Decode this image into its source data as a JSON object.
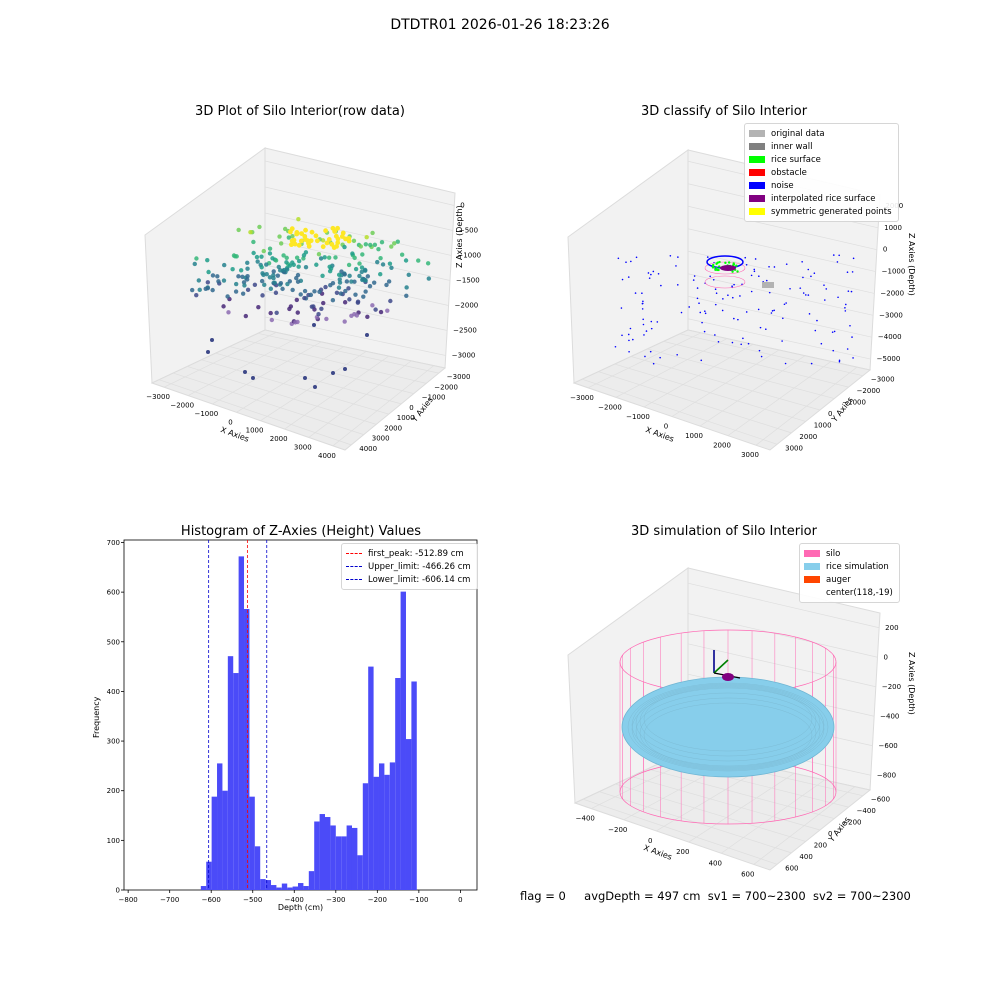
{
  "suptitle": "DTDTR01 2026-01-26 18:23:26",
  "panels": {
    "raw": {
      "title": "3D Plot of Silo Interior(row data)",
      "xlabel": "X Axies",
      "ylabel": "Y Axies",
      "zlabel": "Z Axies (Depth)",
      "xticks": [
        "−3000",
        "−2000",
        "−1000",
        "0",
        "1000",
        "2000",
        "3000",
        "4000"
      ],
      "yticks": [
        "4000",
        "3000",
        "2000",
        "1000",
        "0",
        "−1000",
        "−2000",
        "−3000"
      ],
      "zticks": [
        "0",
        "−500",
        "−1000",
        "−1500",
        "−2000",
        "−2500",
        "−3000"
      ]
    },
    "classify": {
      "title": "3D classify of Silo Interior",
      "xlabel": "X Axies",
      "ylabel": "Y Axies",
      "zlabel": "Z Axies (Depth)",
      "xticks": [
        "−3000",
        "−2000",
        "−1000",
        "0",
        "1000",
        "2000",
        "3000"
      ],
      "yticks": [
        "3000",
        "2000",
        "1000",
        "0",
        "−1000",
        "−2000",
        "−3000"
      ],
      "zticks": [
        "2000",
        "1000",
        "0",
        "−1000",
        "−2000",
        "−3000",
        "−4000",
        "−5000"
      ],
      "legend": [
        {
          "label": "original data",
          "color": "#b3b3b3"
        },
        {
          "label": "inner wall",
          "color": "#808080"
        },
        {
          "label": "rice surface",
          "color": "#00ff00"
        },
        {
          "label": "obstacle",
          "color": "#ff0000"
        },
        {
          "label": "noise",
          "color": "#0000ff"
        },
        {
          "label": "interpolated rice surface",
          "color": "#800080"
        },
        {
          "label": "symmetric generated points",
          "color": "#ffff00"
        }
      ]
    },
    "simulation": {
      "title": "3D simulation of Silo Interior",
      "xlabel": "X Axies",
      "ylabel": "Y Axies",
      "zlabel": "Z Axies (Depth)",
      "xticks": [
        "−400",
        "−200",
        "0",
        "200",
        "400",
        "600"
      ],
      "yticks": [
        "600",
        "400",
        "200",
        "0",
        "−200",
        "−400",
        "−600"
      ],
      "zticks": [
        "200",
        "0",
        "−200",
        "−400",
        "−600",
        "−800"
      ],
      "legend": [
        {
          "label": "silo",
          "color": "#ff69b4"
        },
        {
          "label": "rice simulation",
          "color": "#87ceeb"
        },
        {
          "label": "auger",
          "color": "#ff4500"
        },
        {
          "label": "center(118,-19)",
          "color": ""
        }
      ]
    }
  },
  "chart_data": {
    "type": "bar",
    "title": "Histogram of Z-Axies (Height) Values",
    "xlabel": "Depth (cm)",
    "ylabel": "Frequency",
    "xlim": [
      -810,
      40
    ],
    "ylim": [
      0,
      705
    ],
    "xticks": [
      -800,
      -700,
      -600,
      -500,
      -400,
      -300,
      -200,
      -100,
      0
    ],
    "yticks": [
      0,
      100,
      200,
      300,
      400,
      500,
      600,
      700
    ],
    "bin_width": 13,
    "bins": [
      {
        "start": -625,
        "count": 8
      },
      {
        "start": -612,
        "count": 57
      },
      {
        "start": -599,
        "count": 188
      },
      {
        "start": -586,
        "count": 255
      },
      {
        "start": -573,
        "count": 200
      },
      {
        "start": -560,
        "count": 471
      },
      {
        "start": -547,
        "count": 437
      },
      {
        "start": -534,
        "count": 672
      },
      {
        "start": -521,
        "count": 566
      },
      {
        "start": -508,
        "count": 188
      },
      {
        "start": -495,
        "count": 88
      },
      {
        "start": -482,
        "count": 22
      },
      {
        "start": -469,
        "count": 20
      },
      {
        "start": -456,
        "count": 10
      },
      {
        "start": -443,
        "count": 5
      },
      {
        "start": -430,
        "count": 13
      },
      {
        "start": -417,
        "count": 5
      },
      {
        "start": -404,
        "count": 7
      },
      {
        "start": -391,
        "count": 14
      },
      {
        "start": -378,
        "count": 8
      },
      {
        "start": -365,
        "count": 38
      },
      {
        "start": -352,
        "count": 138
      },
      {
        "start": -339,
        "count": 153
      },
      {
        "start": -326,
        "count": 147
      },
      {
        "start": -313,
        "count": 130
      },
      {
        "start": -300,
        "count": 108
      },
      {
        "start": -287,
        "count": 108
      },
      {
        "start": -274,
        "count": 130
      },
      {
        "start": -261,
        "count": 125
      },
      {
        "start": -248,
        "count": 70
      },
      {
        "start": -235,
        "count": 215
      },
      {
        "start": -222,
        "count": 450
      },
      {
        "start": -209,
        "count": 228
      },
      {
        "start": -196,
        "count": 255
      },
      {
        "start": -183,
        "count": 232
      },
      {
        "start": -170,
        "count": 257
      },
      {
        "start": -157,
        "count": 427
      },
      {
        "start": -144,
        "count": 601
      },
      {
        "start": -131,
        "count": 304
      },
      {
        "start": -118,
        "count": 420
      }
    ],
    "vlines": [
      {
        "name": "first_peak: -512.89 cm",
        "x": -512.89,
        "color": "#ff0000"
      },
      {
        "name": "Upper_limit: -466.26 cm",
        "x": -466.26,
        "color": "#0000cc"
      },
      {
        "name": "Lower_limit: -606.14 cm",
        "x": -606.14,
        "color": "#0000cc"
      }
    ],
    "bar_color": "#4b4bf8"
  },
  "status": {
    "flag": "flag = 0",
    "avg": "avgDepth = 497 cm",
    "sv1": "sv1 = 700~2300",
    "sv2": "sv2 = 700~2300"
  }
}
